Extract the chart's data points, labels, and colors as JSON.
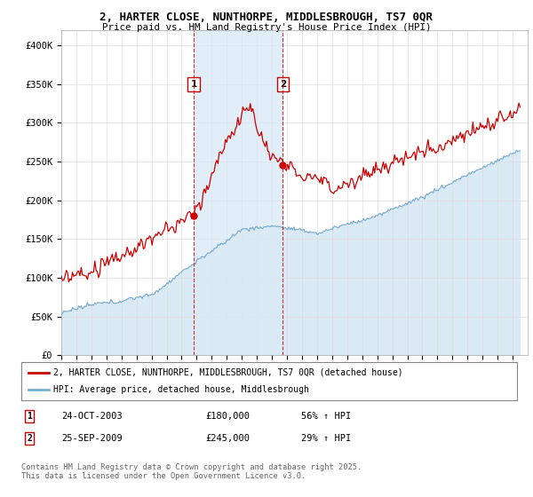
{
  "title_line1": "2, HARTER CLOSE, NUNTHORPE, MIDDLESBROUGH, TS7 0QR",
  "title_line2": "Price paid vs. HM Land Registry's House Price Index (HPI)",
  "ylim": [
    0,
    420000
  ],
  "yticks": [
    0,
    50000,
    100000,
    150000,
    200000,
    250000,
    300000,
    350000,
    400000
  ],
  "ytick_labels": [
    "£0",
    "£50K",
    "£100K",
    "£150K",
    "£200K",
    "£250K",
    "£300K",
    "£350K",
    "£400K"
  ],
  "sale1_date_num": 2003.81,
  "sale1_price": 180000,
  "sale2_date_num": 2009.73,
  "sale2_price": 245000,
  "legend_line1": "2, HARTER CLOSE, NUNTHORPE, MIDDLESBROUGH, TS7 0QR (detached house)",
  "legend_line2": "HPI: Average price, detached house, Middlesbrough",
  "table_row1": [
    "1",
    "24-OCT-2003",
    "£180,000",
    "56% ↑ HPI"
  ],
  "table_row2": [
    "2",
    "25-SEP-2009",
    "£245,000",
    "29% ↑ HPI"
  ],
  "footer": "Contains HM Land Registry data © Crown copyright and database right 2025.\nThis data is licensed under the Open Government Licence v3.0.",
  "house_color": "#cc0000",
  "hpi_color": "#7aadcf",
  "hpi_fill_color": "#daeaf5",
  "xmin": 1995,
  "xmax": 2026
}
